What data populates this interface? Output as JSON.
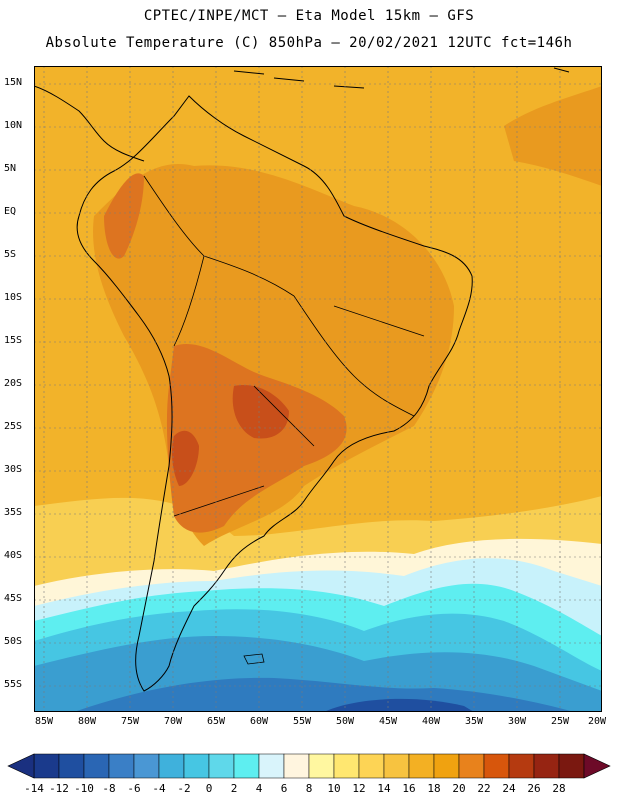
{
  "header": {
    "line1": "CPTEC/INPE/MCT –  Eta Model 15km – GFS",
    "line2": "Absolute Temperature (C) 850hPa – 20/02/2021 12UTC fct=146h"
  },
  "map": {
    "lat_labels": [
      "15N",
      "10N",
      "5N",
      "EQ",
      "5S",
      "10S",
      "15S",
      "20S",
      "25S",
      "30S",
      "35S",
      "40S",
      "45S",
      "50S",
      "55S"
    ],
    "lon_labels": [
      "85W",
      "80W",
      "75W",
      "70W",
      "65W",
      "60W",
      "55W",
      "50W",
      "45W",
      "40W",
      "35W",
      "30W",
      "25W",
      "20W"
    ],
    "region": "South America",
    "gridlines": "dotted"
  },
  "colorbar": {
    "labels": [
      "-14",
      "-12",
      "-10",
      "-8",
      "-6",
      "-4",
      "-2",
      "0",
      "2",
      "4",
      "6",
      "8",
      "10",
      "12",
      "14",
      "16",
      "18",
      "20",
      "22",
      "24",
      "26",
      "28"
    ],
    "colors": [
      "#1a3a8c",
      "#1f4fa0",
      "#2a66b4",
      "#3a7fc6",
      "#4a97d4",
      "#3fb1dc",
      "#46c6e3",
      "#5fd8ea",
      "#5eeef0",
      "#d9f4fb",
      "#fff5df",
      "#fff7a0",
      "#ffe770",
      "#fdd455",
      "#f7c340",
      "#f3b023",
      "#f0a210",
      "#e8821c",
      "#d7560c",
      "#b53a10",
      "#962412",
      "#7a1810"
    ],
    "arrow_low": "#1a3080",
    "arrow_high": "#6d0a28"
  },
  "field_colors": {
    "very_hot": "#c84f1a",
    "hot": "#dd7420",
    "warm": "#e99a1f",
    "mild": "#f2b32a",
    "cool": "#f8cf52",
    "cream": "#fff6d8",
    "pale_cyan": "#c8f2fb",
    "cyan": "#5eeef0",
    "light_blue": "#46c6e3",
    "mid_blue": "#3a9ed0",
    "blue": "#2f7bbf",
    "deep_blue": "#1f4fa0",
    "land_outline": "#000000"
  }
}
